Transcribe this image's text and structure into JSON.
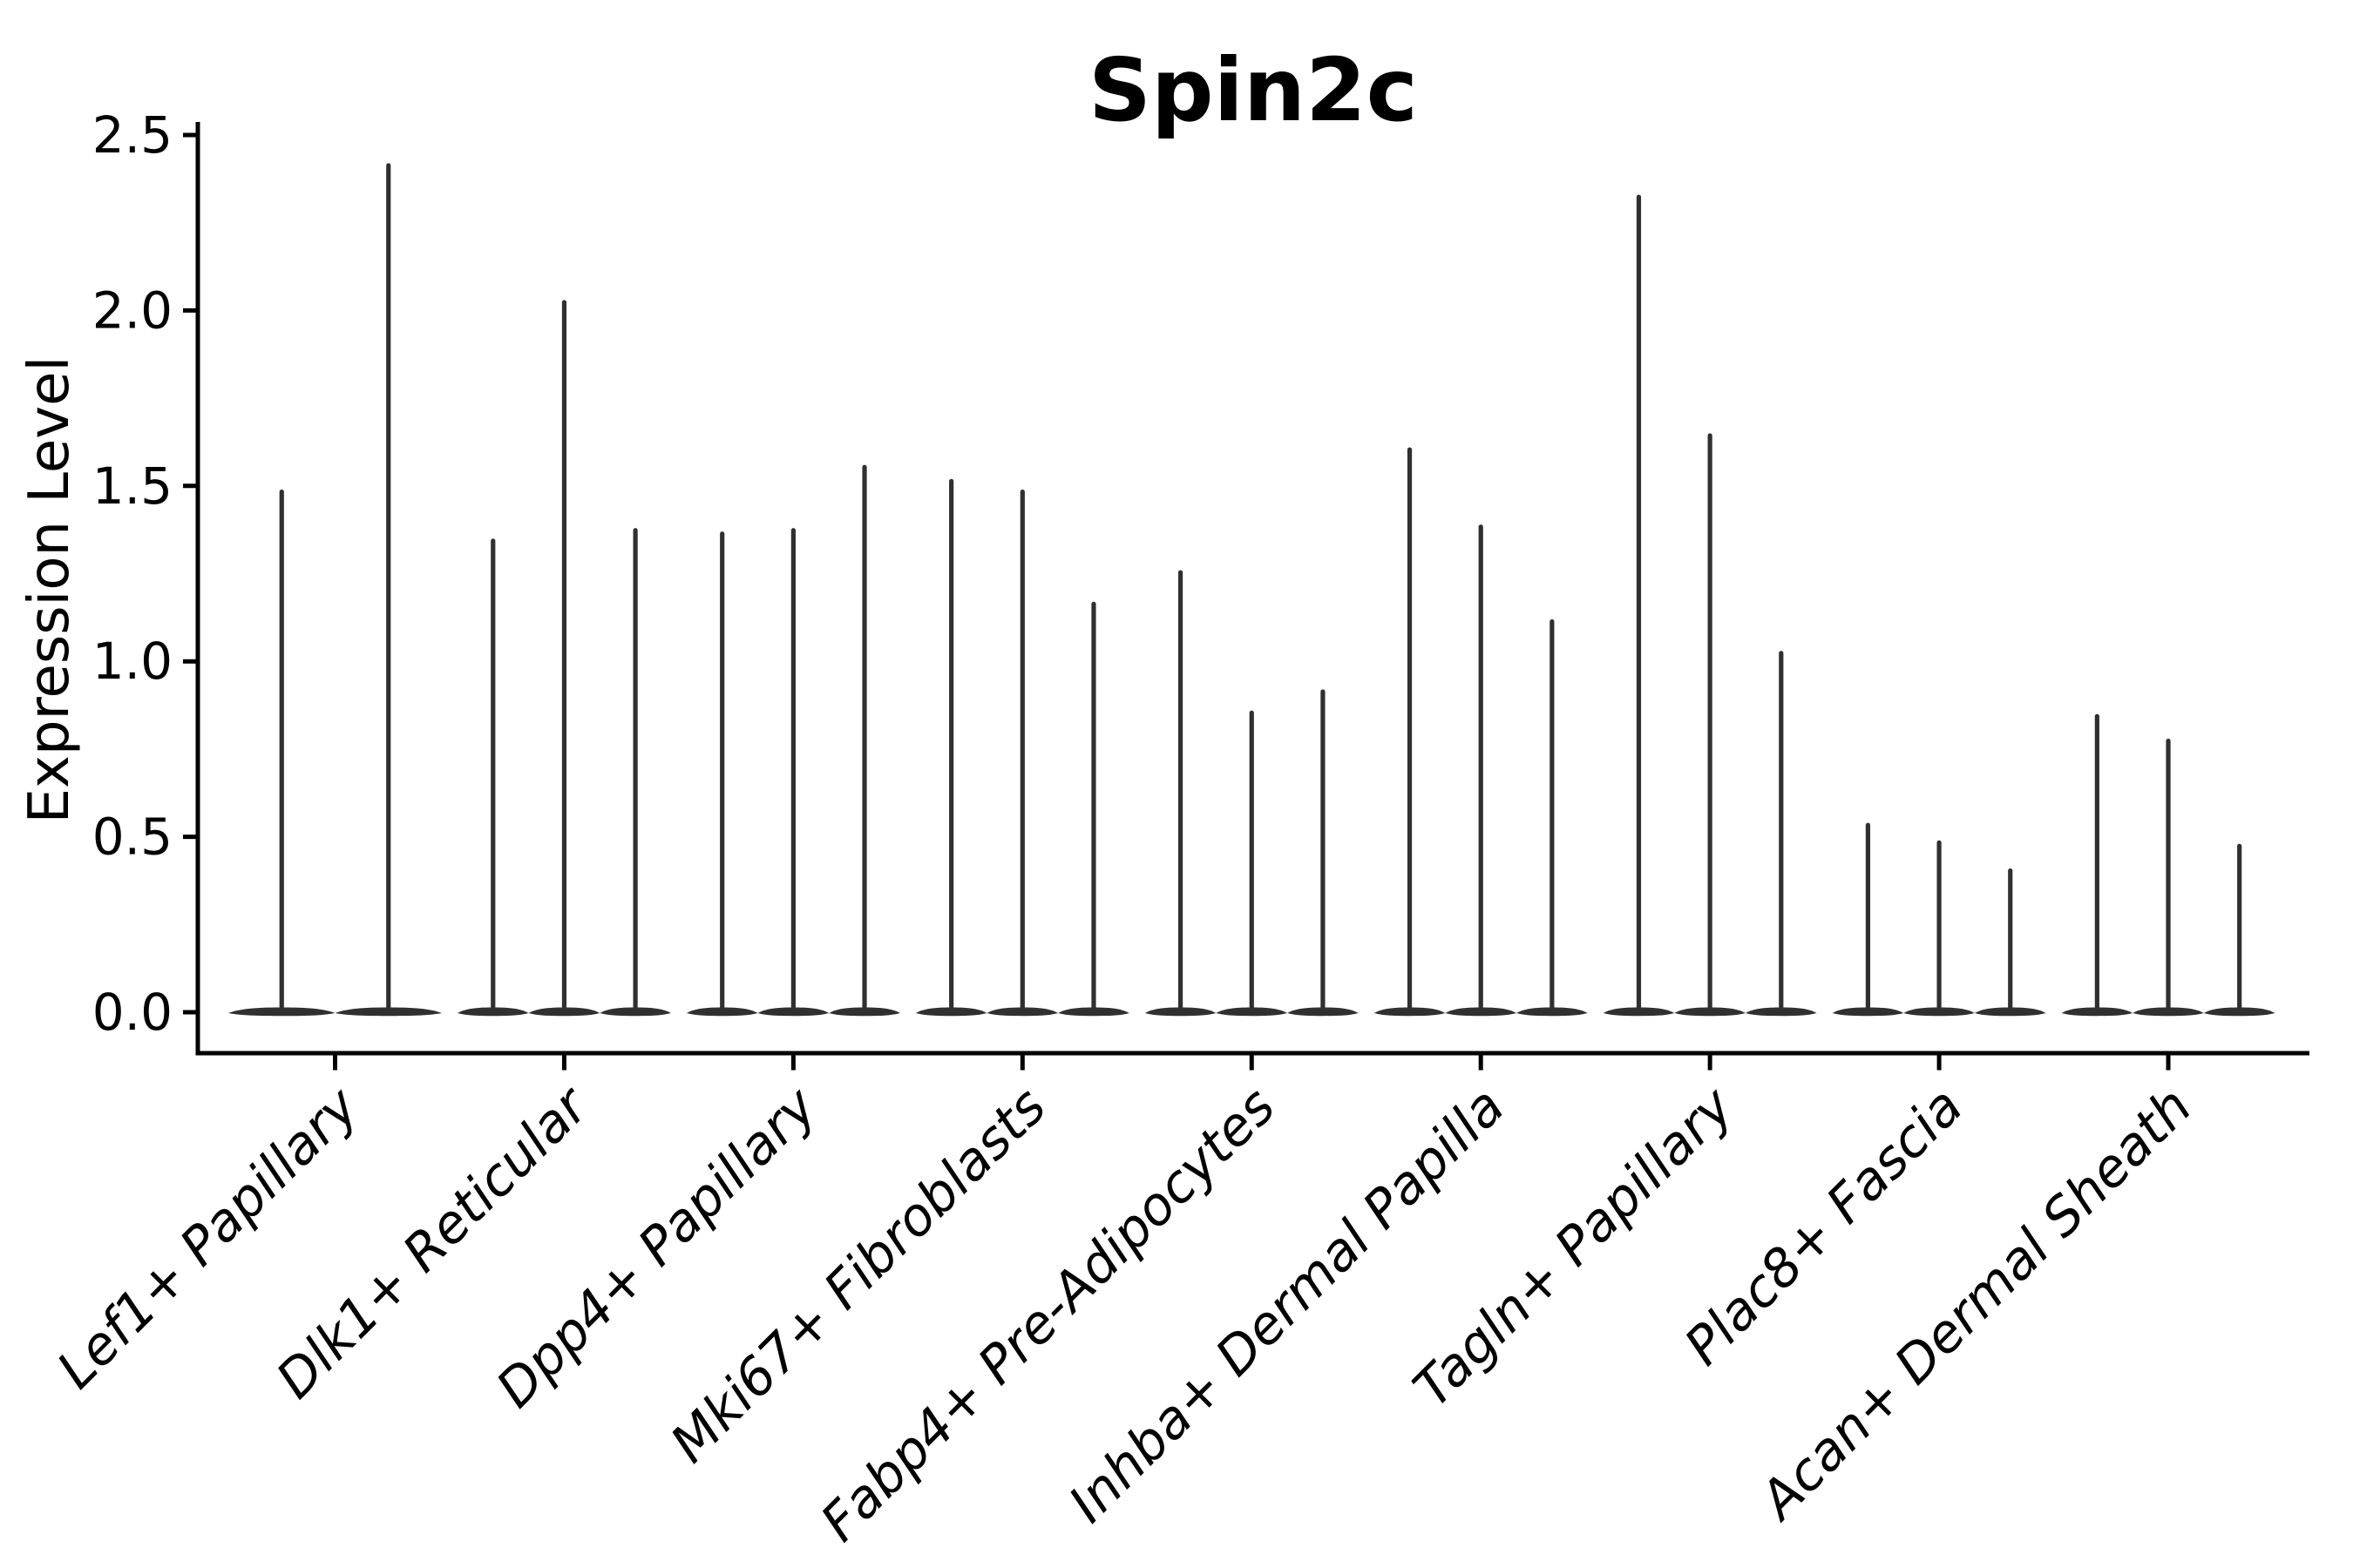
{
  "figure": {
    "background_color": "#ffffff",
    "axis_color": "#000000",
    "violin_color": "#303030"
  },
  "chart_data": {
    "type": "violin",
    "title": "Spin2c",
    "ylabel": "Expression Level",
    "xlabel": "",
    "ylim": [
      0.0,
      2.5
    ],
    "yticks": [
      "0.0",
      "0.5",
      "1.0",
      "1.5",
      "2.0",
      "2.5"
    ],
    "grid": false,
    "legend_position": "none",
    "x_tick_rotation_deg": 45,
    "categories": [
      "Lef1+ Papillary",
      "Dlk1+ Reticular",
      "Dpp4+ Papillary",
      "Mki67+ Fibroblasts",
      "Fabp4+ Pre-Adipocytes",
      "Inhba+ Dermal Papilla",
      "Tagln+ Papillary",
      "Plac8+ Fascia",
      "Acan+ Dermal Sheath"
    ],
    "groups": [
      {
        "category": "Lef1+ Papillary",
        "violin_peak_expression": [
          1.49,
          2.42
        ]
      },
      {
        "category": "Dlk1+ Reticular",
        "violin_peak_expression": [
          1.35,
          2.03,
          1.38
        ]
      },
      {
        "category": "Dpp4+ Papillary",
        "violin_peak_expression": [
          1.37,
          1.38,
          1.56
        ]
      },
      {
        "category": "Mki67+ Fibroblasts",
        "violin_peak_expression": [
          1.52,
          1.49,
          1.17
        ]
      },
      {
        "category": "Fabp4+ Pre-Adipocytes",
        "violin_peak_expression": [
          1.26,
          0.86,
          0.92
        ]
      },
      {
        "category": "Inhba+ Dermal Papilla",
        "violin_peak_expression": [
          1.61,
          1.39,
          1.12
        ]
      },
      {
        "category": "Tagln+ Papillary",
        "violin_peak_expression": [
          2.33,
          1.65,
          1.03
        ]
      },
      {
        "category": "Plac8+ Fascia",
        "violin_peak_expression": [
          0.54,
          0.49,
          0.41
        ]
      },
      {
        "category": "Acan+ Dermal Sheath",
        "violin_peak_expression": [
          0.85,
          0.78,
          0.48
        ]
      }
    ]
  }
}
